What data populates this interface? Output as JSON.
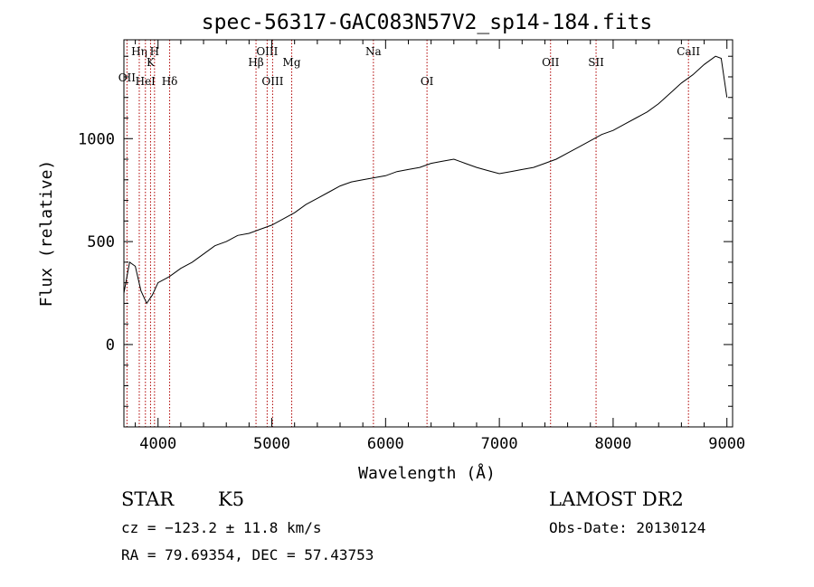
{
  "chart_data": {
    "type": "line",
    "title": "spec-56317-GAC083N57V2_sp14-184.fits",
    "xlabel": "Wavelength (Å)",
    "ylabel": "Flux (relative)",
    "xlim": [
      3700,
      9050
    ],
    "ylim": [
      -400,
      1480
    ],
    "x_ticks": [
      4000,
      5000,
      6000,
      7000,
      8000,
      9000
    ],
    "y_ticks": [
      0,
      500,
      1000
    ],
    "grid": false,
    "spectral_lines": [
      {
        "name": "OII",
        "wavelength": 3727
      },
      {
        "name": "Hη",
        "wavelength": 3835
      },
      {
        "name": "HeI",
        "wavelength": 3889
      },
      {
        "name": "K",
        "wavelength": 3934
      },
      {
        "name": "H",
        "wavelength": 3969
      },
      {
        "name": "Hδ",
        "wavelength": 4102
      },
      {
        "name": "Hβ",
        "wavelength": 4861
      },
      {
        "name": "OIII",
        "wavelength": 4959
      },
      {
        "name": "OIII",
        "wavelength": 5007
      },
      {
        "name": "Mg",
        "wavelength": 5175
      },
      {
        "name": "Na",
        "wavelength": 5893
      },
      {
        "name": "OI",
        "wavelength": 6364
      },
      {
        "name": "OII",
        "wavelength": 7450
      },
      {
        "name": "SII",
        "wavelength": 7850
      },
      {
        "name": "CaII",
        "wavelength": 8662
      }
    ],
    "series": [
      {
        "x": [
          3700,
          3750,
          3800,
          3850,
          3900,
          3950,
          4000,
          4100,
          4200,
          4300,
          4400,
          4500,
          4600,
          4700,
          4800,
          4900,
          5000,
          5100,
          5200,
          5300,
          5400,
          5500,
          5600,
          5700,
          5800,
          5900,
          6000,
          6100,
          6200,
          6300,
          6400,
          6500,
          6600,
          6700,
          6800,
          6900,
          7000,
          7100,
          7200,
          7300,
          7400,
          7500,
          7600,
          7700,
          7800,
          7900,
          8000,
          8100,
          8200,
          8300,
          8400,
          8500,
          8600,
          8700,
          8800,
          8900,
          8950,
          9000
        ],
        "y": [
          250,
          400,
          380,
          260,
          200,
          240,
          300,
          330,
          370,
          400,
          440,
          480,
          500,
          530,
          540,
          560,
          580,
          610,
          640,
          680,
          710,
          740,
          770,
          790,
          800,
          810,
          820,
          840,
          850,
          860,
          880,
          890,
          900,
          880,
          860,
          845,
          830,
          840,
          850,
          860,
          880,
          900,
          930,
          960,
          990,
          1020,
          1040,
          1070,
          1100,
          1130,
          1170,
          1220,
          1270,
          1310,
          1360,
          1400,
          1390,
          1200
        ]
      }
    ]
  },
  "info": {
    "object_class": "STAR",
    "subclass": "K5",
    "survey": "LAMOST DR2",
    "redshift": "cz = −123.2 ± 11.8 km/s",
    "obs_date": "Obs-Date: 20130124",
    "coords": "RA =  79.69354, DEC =  57.43753"
  }
}
